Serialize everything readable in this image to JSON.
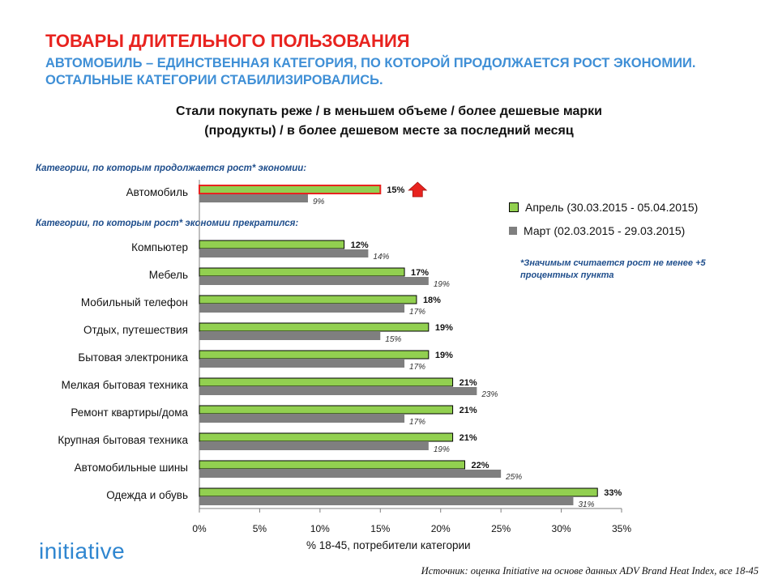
{
  "header": {
    "title": "ТОВАРЫ ДЛИТЕЛЬНОГО ПОЛЬЗОВАНИЯ",
    "subtitle": "АВТОМОБИЛЬ – ЕДИНСТВЕННАЯ КАТЕГОРИЯ, ПО КОТОРОЙ ПРОДОЛЖАЕТСЯ РОСТ ЭКОНОМИИ. ОСТАЛЬНЫЕ КАТЕГОРИИ СТАБИЛИЗИРОВАЛИСЬ."
  },
  "question_line1": "Стали покупать реже / в меньшем объеме / более дешевые марки",
  "question_line2": "(продукты)  / в более дешевом месте за последний месяц",
  "groups": {
    "growing": "Категории, по которым продолжается рост* экономии:",
    "stopped": "Категории, по которым рост* экономии прекратился:"
  },
  "legend": {
    "april": "Апрель (30.03.2015 - 05.04.2015)",
    "march": "Март (02.03.2015 - 29.03.2015)"
  },
  "note": "*Значимым считается рост не менее +5 процентных пункта",
  "logo": "initiative",
  "axis_title": "% 18-45, потребители категории",
  "source": "Источник: оценка Initiative на основе данных ADV Brand Heat Index, все 18-45",
  "colors": {
    "april": "#92d050",
    "march": "#7f7f7f",
    "highlight": "#e8231f"
  },
  "chart_data": {
    "type": "bar",
    "orientation": "horizontal",
    "xlim": [
      0,
      35
    ],
    "xticks": [
      "0%",
      "5%",
      "10%",
      "15%",
      "20%",
      "25%",
      "30%",
      "35%"
    ],
    "xtick_values": [
      0,
      5,
      10,
      15,
      20,
      25,
      30,
      35
    ],
    "xlabel": "% 18-45, потребители категории",
    "categories": [
      "Автомобиль",
      "Компьютер",
      "Мебель",
      "Мобильный  телефон",
      "Отдых, путешествия",
      "Бытовая электроника",
      "Мелкая бытовая техника",
      "Ремонт квартиры/дома",
      "Крупная бытовая техника",
      "Автомобильные шины",
      "Одежда и обувь"
    ],
    "series": [
      {
        "name": "Апрель (30.03.2015 - 05.04.2015)",
        "values": [
          15,
          12,
          17,
          18,
          19,
          19,
          21,
          21,
          21,
          22,
          33
        ],
        "labels": [
          "15%",
          "12%",
          "17%",
          "18%",
          "19%",
          "19%",
          "21%",
          "21%",
          "21%",
          "22%",
          "33%"
        ]
      },
      {
        "name": "Март (02.03.2015 - 29.03.2015)",
        "values": [
          9,
          14,
          19,
          17,
          15,
          17,
          23,
          17,
          19,
          25,
          31
        ],
        "labels": [
          "9%",
          "14%",
          "19%",
          "17%",
          "15%",
          "17%",
          "23%",
          "17%",
          "19%",
          "25%",
          "31%"
        ]
      }
    ],
    "highlighted_category": "Автомобиль"
  }
}
